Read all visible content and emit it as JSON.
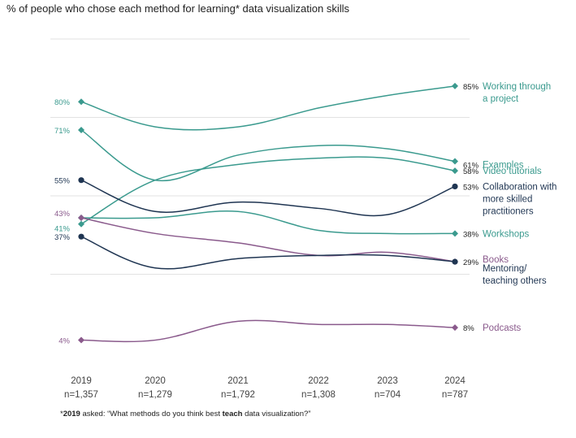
{
  "title": "% of people who chose each method for learning* data visualization skills",
  "footnote": {
    "prefix": "*",
    "year": "2019",
    "text_before": " asked: “What methods do you think best ",
    "bold_word": "teach",
    "text_after": " data visualization?”"
  },
  "chart_data": {
    "type": "line",
    "title": "% of people who chose each method for learning* data visualization skills",
    "categories": [
      "2019",
      "2020",
      "2021",
      "2022",
      "2023",
      "2024"
    ],
    "sample_sizes": [
      "n=1,357",
      "n=1,279",
      "n=1,792",
      "n=1,308",
      "n=704",
      "n=787"
    ],
    "ylim": [
      0,
      100
    ],
    "grid": true,
    "legend": "labels at line ends",
    "colors": {
      "teal": "#3a9a8e",
      "navy": "#1f3552",
      "purple": "#8a5a8c"
    },
    "series": [
      {
        "name": "Working through a project",
        "label_lines": [
          "Working through",
          "a project"
        ],
        "values": [
          80,
          72,
          72,
          78,
          82,
          85
        ],
        "color": "#3a9a8e",
        "start_label": "80%",
        "end_label": "85%"
      },
      {
        "name": "Examples",
        "label_lines": [
          "Examples"
        ],
        "values": [
          71,
          55,
          63,
          66,
          65,
          61
        ],
        "color": "#3a9a8e",
        "start_label": "71%",
        "end_label": "61%"
      },
      {
        "name": "Video tutorials",
        "label_lines": [
          "Video tutorials"
        ],
        "values": [
          41,
          55,
          60,
          62,
          62,
          58
        ],
        "color": "#3a9a8e",
        "start_label": "41%",
        "end_label": "58%"
      },
      {
        "name": "Collaboration with more skilled practitioners",
        "label_lines": [
          "Collaboration with",
          "more skilled",
          "practitioners"
        ],
        "values": [
          55,
          45,
          48,
          46,
          44,
          53
        ],
        "color": "#1f3552",
        "start_label": "55%",
        "end_label": "53%"
      },
      {
        "name": "Workshops",
        "label_lines": [
          "Workshops"
        ],
        "values": [
          43,
          43,
          45,
          39,
          38,
          38
        ],
        "color": "#3a9a8e",
        "start_label": "",
        "end_label": "38%"
      },
      {
        "name": "Books",
        "label_lines": [
          "Books"
        ],
        "values": [
          43,
          38,
          35,
          31,
          32,
          29
        ],
        "color": "#8a5a8c",
        "start_label": "43%",
        "end_label": ""
      },
      {
        "name": "Mentoring/ teaching others",
        "label_lines": [
          "Mentoring/",
          "teaching others"
        ],
        "values": [
          37,
          27,
          30,
          31,
          31,
          29
        ],
        "color": "#1f3552",
        "start_label": "37%",
        "end_label": "29%"
      },
      {
        "name": "Podcasts",
        "label_lines": [
          "Podcasts"
        ],
        "values": [
          4,
          4,
          10,
          9,
          9,
          8
        ],
        "color": "#8a5a8c",
        "start_label": "4%",
        "end_label": "8%"
      }
    ]
  }
}
